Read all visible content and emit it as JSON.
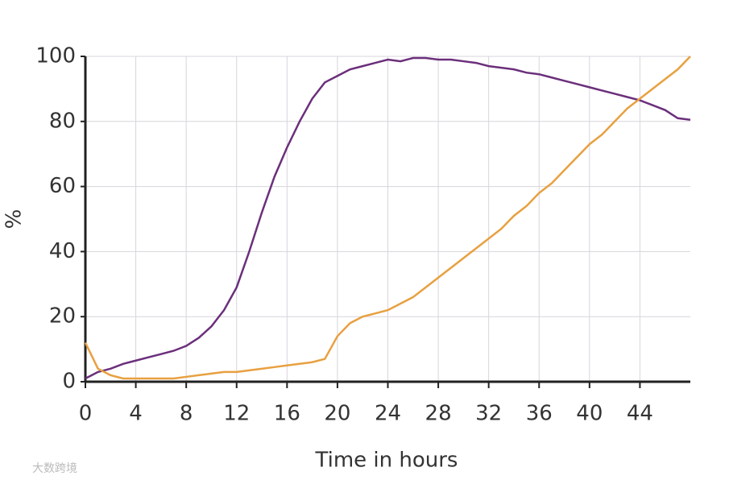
{
  "chart_data": {
    "type": "line",
    "xlabel": "Time in hours",
    "ylabel": "%",
    "watermark": "大数跨境",
    "x": [
      0,
      1,
      2,
      3,
      4,
      5,
      6,
      7,
      8,
      9,
      10,
      11,
      12,
      13,
      14,
      15,
      16,
      17,
      18,
      19,
      20,
      21,
      22,
      23,
      24,
      25,
      26,
      27,
      28,
      29,
      30,
      31,
      32,
      33,
      34,
      35,
      36,
      37,
      38,
      39,
      40,
      41,
      42,
      43,
      44,
      45,
      46,
      47,
      48
    ],
    "series": [
      {
        "color": "#6b2f7b",
        "values": [
          1,
          3,
          4,
          5.5,
          6.5,
          7.5,
          8.5,
          9.5,
          11,
          13.5,
          17,
          22,
          29,
          40,
          52,
          63,
          72,
          80,
          87,
          92,
          94,
          96,
          97,
          98,
          99,
          98.5,
          99.5,
          99.5,
          99,
          99,
          98.5,
          98,
          97,
          96.5,
          96,
          95,
          94.5,
          93.5,
          92.5,
          91.5,
          90.5,
          89.5,
          88.5,
          87.5,
          86.5,
          85,
          83.5,
          81,
          80.5
        ]
      },
      {
        "color": "#e8a040",
        "values": [
          12,
          4,
          2,
          1,
          1,
          1,
          1,
          1,
          1.5,
          2,
          2.5,
          3,
          3,
          3.5,
          4,
          4.5,
          5,
          5.5,
          6,
          7,
          14,
          18,
          20,
          21,
          22,
          24,
          26,
          29,
          32,
          35,
          38,
          41,
          44,
          47,
          51,
          54,
          58,
          61,
          65,
          69,
          73,
          76,
          80,
          84,
          87,
          90,
          93,
          96,
          100
        ]
      }
    ],
    "xlim": [
      0,
      48
    ],
    "xticks": [
      0,
      4,
      8,
      12,
      16,
      20,
      24,
      28,
      32,
      36,
      40,
      44
    ],
    "ylim": [
      0,
      100
    ],
    "yticks": [
      0,
      20,
      40,
      60,
      80,
      100
    ],
    "grid": true
  }
}
